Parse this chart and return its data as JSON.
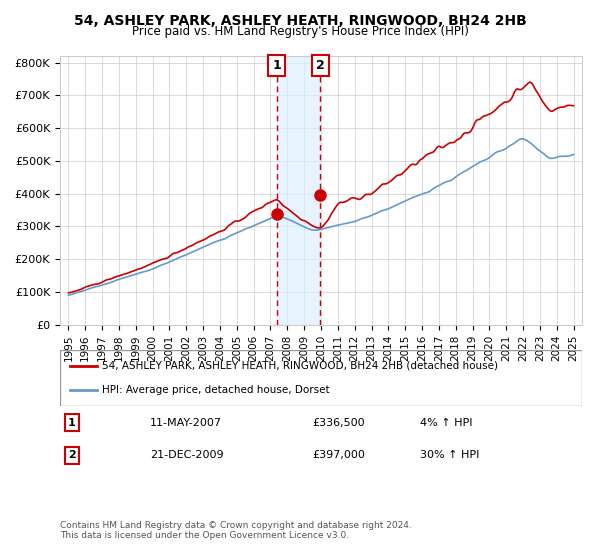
{
  "title": "54, ASHLEY PARK, ASHLEY HEATH, RINGWOOD, BH24 2HB",
  "subtitle": "Price paid vs. HM Land Registry's House Price Index (HPI)",
  "legend_line1": "54, ASHLEY PARK, ASHLEY HEATH, RINGWOOD, BH24 2HB (detached house)",
  "legend_line2": "HPI: Average price, detached house, Dorset",
  "transaction1_label": "1",
  "transaction1_date": "11-MAY-2007",
  "transaction1_price": "£336,500",
  "transaction1_hpi": "4% ↑ HPI",
  "transaction1_x": 2007.36,
  "transaction1_y": 336500,
  "transaction2_label": "2",
  "transaction2_date": "21-DEC-2009",
  "transaction2_price": "£397,000",
  "transaction2_hpi": "30% ↑ HPI",
  "transaction2_x": 2009.97,
  "transaction2_y": 397000,
  "xlabel": "",
  "ylabel": "",
  "ylim": [
    0,
    820000
  ],
  "xlim_start": 1994.5,
  "xlim_end": 2025.5,
  "yticks": [
    0,
    100000,
    200000,
    300000,
    400000,
    500000,
    600000,
    700000,
    800000
  ],
  "ytick_labels": [
    "£0",
    "£100K",
    "£200K",
    "£300K",
    "£400K",
    "£500K",
    "£600K",
    "£700K",
    "£800K"
  ],
  "xticks": [
    1995,
    1996,
    1997,
    1998,
    1999,
    2000,
    2001,
    2002,
    2003,
    2004,
    2005,
    2006,
    2007,
    2008,
    2009,
    2010,
    2011,
    2012,
    2013,
    2014,
    2015,
    2016,
    2017,
    2018,
    2019,
    2020,
    2021,
    2022,
    2023,
    2024,
    2025
  ],
  "background_color": "#ffffff",
  "plot_bg_color": "#ffffff",
  "grid_color": "#cccccc",
  "red_line_color": "#cc0000",
  "blue_line_color": "#6699cc",
  "shaded_region_color": "#ddeeff",
  "dashed_line_color": "#cc0000",
  "marker_color": "#cc0000",
  "footnote": "Contains HM Land Registry data © Crown copyright and database right 2024.\nThis data is licensed under the Open Government Licence v3.0."
}
